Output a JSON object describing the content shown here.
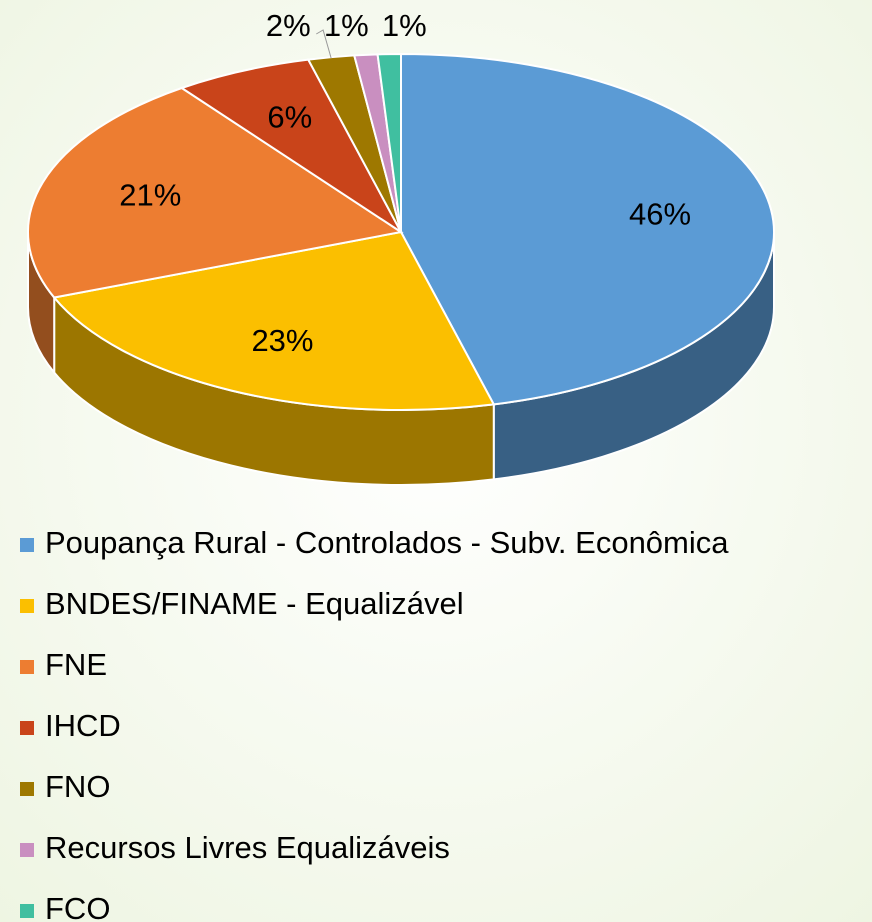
{
  "chart_data": {
    "type": "pie",
    "categories": [
      "Poupança Rural - Controlados - Subv. Econômica",
      "BNDES/FINAME - Equalizável",
      "FNE",
      "IHCD",
      "FNO",
      "Recursos Livres Equalizáveis",
      "FCO"
    ],
    "values": [
      46,
      23,
      21,
      6,
      2,
      1,
      1
    ],
    "value_labels": [
      "46%",
      "23%",
      "21%",
      "6%",
      "2%",
      "1%",
      "1%"
    ],
    "colors": [
      "#5b9bd5",
      "#fbbf00",
      "#ed7d31",
      "#c9441a",
      "#9e7800",
      "#c98fc0",
      "#40bfa0"
    ],
    "legend": "bottom"
  }
}
